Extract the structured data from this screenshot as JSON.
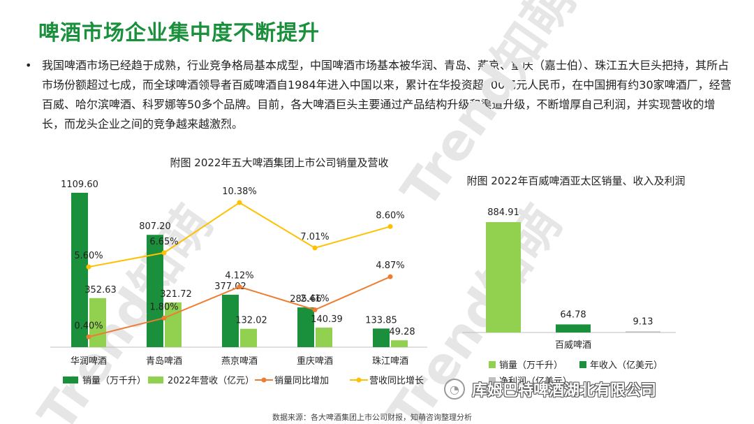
{
  "page": {
    "title": "啤酒市场企业集中度不断提升",
    "bullet": "•",
    "paragraph": "我国啤酒市场已经趋于成熟，行业竞争格局基本成型，中国啤酒市场基本被华润、青岛、燕京、重庆（嘉士伯）、珠江五大巨头把持，其所占市场份额超过七成，而全球啤酒领导者百威啤酒自1984年进入中国以来，累计在华投资超300亿元人民币，在中国拥有约30家啤酒厂，经营百威、哈尔滨啤酒、科罗娜等50多个品牌。目前，各大啤酒巨头主要通过产品结构升级和渠道升级，不断增厚自己利润，并实现营收的增长，而龙头企业之间的竞争越来越激烈。",
    "source": "数据来源：各大啤酒集团上市公司财报，知萌咨询整理分析",
    "watermark": "Trend知萌",
    "wechat_logo": {
      "text": "库姆巴特啤酒湖北有限公司",
      "icon": "wechat-icon"
    }
  },
  "chart_data": [
    {
      "type": "bar",
      "title": "附图 2022年五大啤酒集团上市公司销量及营收",
      "categories": [
        "华润啤酒",
        "青岛啤酒",
        "燕京啤酒",
        "重庆啤酒",
        "珠江啤酒"
      ],
      "series": [
        {
          "name": "销量（万千升）",
          "type": "bar",
          "color": "#1a8f3c",
          "values": [
            1109.6,
            807.2,
            377.02,
            285.66,
            133.85
          ],
          "labels": [
            "1109.60",
            "807.20",
            "377.02",
            "285.66",
            "133.85"
          ]
        },
        {
          "name": "2022年营收（亿元）",
          "type": "bar",
          "color": "#92d050",
          "values": [
            352.63,
            321.72,
            132.02,
            140.39,
            49.28
          ],
          "labels": [
            "352.63",
            "321.72",
            "132.02",
            "140.39",
            "49.28"
          ]
        },
        {
          "name": "销量同比增加",
          "type": "line",
          "color": "#ed7d31",
          "values": [
            0.4,
            1.8,
            4.12,
            2.41,
            4.87
          ],
          "labels": [
            "0.40%",
            "1.80%",
            "4.12%",
            "2.41%",
            "4.87%"
          ]
        },
        {
          "name": "营收同比增长",
          "type": "line",
          "color": "#ffc000",
          "values": [
            5.6,
            6.65,
            10.38,
            7.01,
            8.6
          ],
          "labels": [
            "5.60%",
            "6.65%",
            "10.38%",
            "7.01%",
            "8.60%"
          ]
        }
      ],
      "legend": "bottom",
      "grid": false
    },
    {
      "type": "bar",
      "title": "附图 2022年百威啤酒亚太区销量、收入及利润",
      "categories": [
        "百威啤酒"
      ],
      "series": [
        {
          "name": "销量（万千升）",
          "color": "#92d050",
          "values": [
            884.91
          ],
          "labels": [
            "884.91"
          ]
        },
        {
          "name": "年收入（亿美元）",
          "color": "#1a8f3c",
          "values": [
            64.78
          ],
          "labels": [
            "64.78"
          ]
        },
        {
          "name": "净利润（亿美元）",
          "color": "#bfbfbf",
          "values": [
            9.13
          ],
          "labels": [
            "9.13"
          ]
        }
      ],
      "legend": "bottom",
      "grid": false
    }
  ]
}
